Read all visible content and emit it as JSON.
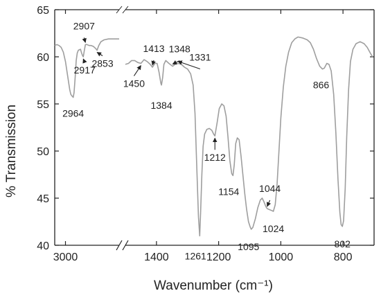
{
  "chart_data": {
    "type": "line",
    "xlabel": "Wavenumber (cm⁻¹)",
    "ylabel": "% Transmission",
    "ylim": [
      40,
      65
    ],
    "y_ticks": [
      40,
      45,
      50,
      55,
      60,
      65
    ],
    "x_axis": {
      "reversed": true,
      "broken": true,
      "left_segment": {
        "range": [
          3050,
          2750
        ],
        "ticks": [
          3000
        ]
      },
      "right_segment": {
        "range": [
          1500,
          700
        ],
        "ticks": [
          1400,
          1200,
          1000,
          800
        ]
      }
    },
    "series": [
      {
        "points_left": [
          [
            3050,
            61.2
          ],
          [
            3040,
            61.3
          ],
          [
            3030,
            61.2
          ],
          [
            3020,
            61.0
          ],
          [
            3010,
            60.5
          ],
          [
            3000,
            59.5
          ],
          [
            2990,
            58.0
          ],
          [
            2980,
            56.5
          ],
          [
            2975,
            56.0
          ],
          [
            2968,
            55.8
          ],
          [
            2964,
            55.7
          ],
          [
            2960,
            56.2
          ],
          [
            2955,
            57.8
          ],
          [
            2950,
            59.6
          ],
          [
            2945,
            60.4
          ],
          [
            2940,
            60.7
          ],
          [
            2930,
            60.8
          ],
          [
            2925,
            60.4
          ],
          [
            2920,
            60.1
          ],
          [
            2917,
            60.0
          ],
          [
            2912,
            60.7
          ],
          [
            2907,
            61.3
          ],
          [
            2900,
            61.3
          ],
          [
            2890,
            61.2
          ],
          [
            2880,
            61.2
          ],
          [
            2870,
            61.1
          ],
          [
            2860,
            60.9
          ],
          [
            2853,
            60.7
          ],
          [
            2845,
            61.2
          ],
          [
            2835,
            61.6
          ],
          [
            2820,
            61.8
          ],
          [
            2800,
            61.9
          ],
          [
            2780,
            61.9
          ],
          [
            2760,
            61.9
          ],
          [
            2750,
            61.9
          ]
        ],
        "points_right": [
          [
            1500,
            59.2
          ],
          [
            1490,
            59.3
          ],
          [
            1480,
            59.6
          ],
          [
            1470,
            59.6
          ],
          [
            1460,
            59.4
          ],
          [
            1450,
            59.3
          ],
          [
            1440,
            59.7
          ],
          [
            1430,
            59.5
          ],
          [
            1420,
            59.2
          ],
          [
            1413,
            58.9
          ],
          [
            1405,
            59.3
          ],
          [
            1398,
            59.3
          ],
          [
            1392,
            58.4
          ],
          [
            1386,
            57.2
          ],
          [
            1384,
            57.0
          ],
          [
            1380,
            57.8
          ],
          [
            1376,
            59.2
          ],
          [
            1370,
            59.6
          ],
          [
            1360,
            59.3
          ],
          [
            1348,
            59.0
          ],
          [
            1340,
            59.2
          ],
          [
            1331,
            59.3
          ],
          [
            1320,
            59.2
          ],
          [
            1310,
            58.9
          ],
          [
            1300,
            58.7
          ],
          [
            1290,
            58.2
          ],
          [
            1282,
            57.0
          ],
          [
            1276,
            54.0
          ],
          [
            1270,
            48.0
          ],
          [
            1265,
            43.0
          ],
          [
            1261,
            41.0
          ],
          [
            1258,
            43.5
          ],
          [
            1254,
            47.5
          ],
          [
            1250,
            50.5
          ],
          [
            1245,
            51.8
          ],
          [
            1238,
            52.3
          ],
          [
            1230,
            52.4
          ],
          [
            1222,
            52.2
          ],
          [
            1216,
            51.8
          ],
          [
            1212,
            51.6
          ],
          [
            1205,
            53.0
          ],
          [
            1198,
            54.5
          ],
          [
            1190,
            55.0
          ],
          [
            1183,
            54.8
          ],
          [
            1176,
            53.7
          ],
          [
            1170,
            51.5
          ],
          [
            1164,
            49.0
          ],
          [
            1158,
            47.6
          ],
          [
            1154,
            47.4
          ],
          [
            1150,
            48.5
          ],
          [
            1145,
            50.8
          ],
          [
            1140,
            51.4
          ],
          [
            1134,
            51.2
          ],
          [
            1128,
            49.5
          ],
          [
            1122,
            47.5
          ],
          [
            1116,
            45.5
          ],
          [
            1110,
            43.8
          ],
          [
            1104,
            42.5
          ],
          [
            1098,
            41.9
          ],
          [
            1095,
            41.7
          ],
          [
            1090,
            41.9
          ],
          [
            1082,
            42.8
          ],
          [
            1074,
            44.0
          ],
          [
            1066,
            44.8
          ],
          [
            1060,
            45.0
          ],
          [
            1054,
            44.6
          ],
          [
            1048,
            44.1
          ],
          [
            1044,
            43.9
          ],
          [
            1038,
            43.8
          ],
          [
            1030,
            43.7
          ],
          [
            1024,
            43.6
          ],
          [
            1018,
            44.3
          ],
          [
            1012,
            46.5
          ],
          [
            1006,
            50.0
          ],
          [
            1000,
            53.5
          ],
          [
            992,
            56.8
          ],
          [
            984,
            59.0
          ],
          [
            975,
            60.5
          ],
          [
            965,
            61.5
          ],
          [
            955,
            61.9
          ],
          [
            945,
            62.1
          ],
          [
            930,
            62.0
          ],
          [
            915,
            61.8
          ],
          [
            905,
            61.5
          ],
          [
            895,
            60.8
          ],
          [
            885,
            59.8
          ],
          [
            875,
            59.0
          ],
          [
            866,
            58.7
          ],
          [
            860,
            58.8
          ],
          [
            852,
            59.3
          ],
          [
            845,
            59.2
          ],
          [
            838,
            58.5
          ],
          [
            830,
            56.0
          ],
          [
            823,
            52.0
          ],
          [
            816,
            47.0
          ],
          [
            810,
            43.5
          ],
          [
            806,
            42.2
          ],
          [
            802,
            42.0
          ],
          [
            798,
            42.6
          ],
          [
            793,
            46.0
          ],
          [
            788,
            51.5
          ],
          [
            782,
            56.5
          ],
          [
            776,
            59.5
          ],
          [
            768,
            60.8
          ],
          [
            758,
            61.4
          ],
          [
            745,
            61.6
          ],
          [
            732,
            61.4
          ],
          [
            722,
            61.0
          ],
          [
            712,
            60.4
          ],
          [
            705,
            60.0
          ]
        ]
      }
    ],
    "annotations": [
      {
        "label": "2964",
        "x": 2964,
        "y": 55.7,
        "arrow": false
      },
      {
        "label": "2917",
        "x": 2917,
        "y": 60.0,
        "arrow": true
      },
      {
        "label": "2907",
        "x": 2907,
        "y": 61.3,
        "arrow": true
      },
      {
        "label": "2853",
        "x": 2853,
        "y": 60.7,
        "arrow": true
      },
      {
        "label": "1450",
        "x": 1450,
        "y": 59.3,
        "arrow": true
      },
      {
        "label": "1413",
        "x": 1413,
        "y": 58.9,
        "arrow": true
      },
      {
        "label": "1384",
        "x": 1384,
        "y": 57.0,
        "arrow": false
      },
      {
        "label": "1348",
        "x": 1348,
        "y": 59.0,
        "arrow": true
      },
      {
        "label": "1331",
        "x": 1331,
        "y": 59.3,
        "arrow": true
      },
      {
        "label": "1261",
        "x": 1261,
        "y": 41.0,
        "arrow": false
      },
      {
        "label": "1212",
        "x": 1212,
        "y": 51.6,
        "arrow": true
      },
      {
        "label": "1154",
        "x": 1154,
        "y": 47.4,
        "arrow": false
      },
      {
        "label": "1095",
        "x": 1095,
        "y": 41.7,
        "arrow": false
      },
      {
        "label": "1044",
        "x": 1044,
        "y": 43.9,
        "arrow": true
      },
      {
        "label": "1024",
        "x": 1024,
        "y": 43.6,
        "arrow": false
      },
      {
        "label": "866",
        "x": 866,
        "y": 58.7,
        "arrow": false
      },
      {
        "label": "802",
        "x": 802,
        "y": 42.0,
        "arrow": false
      }
    ],
    "grid": false,
    "line_color": "#9e9e9e"
  }
}
